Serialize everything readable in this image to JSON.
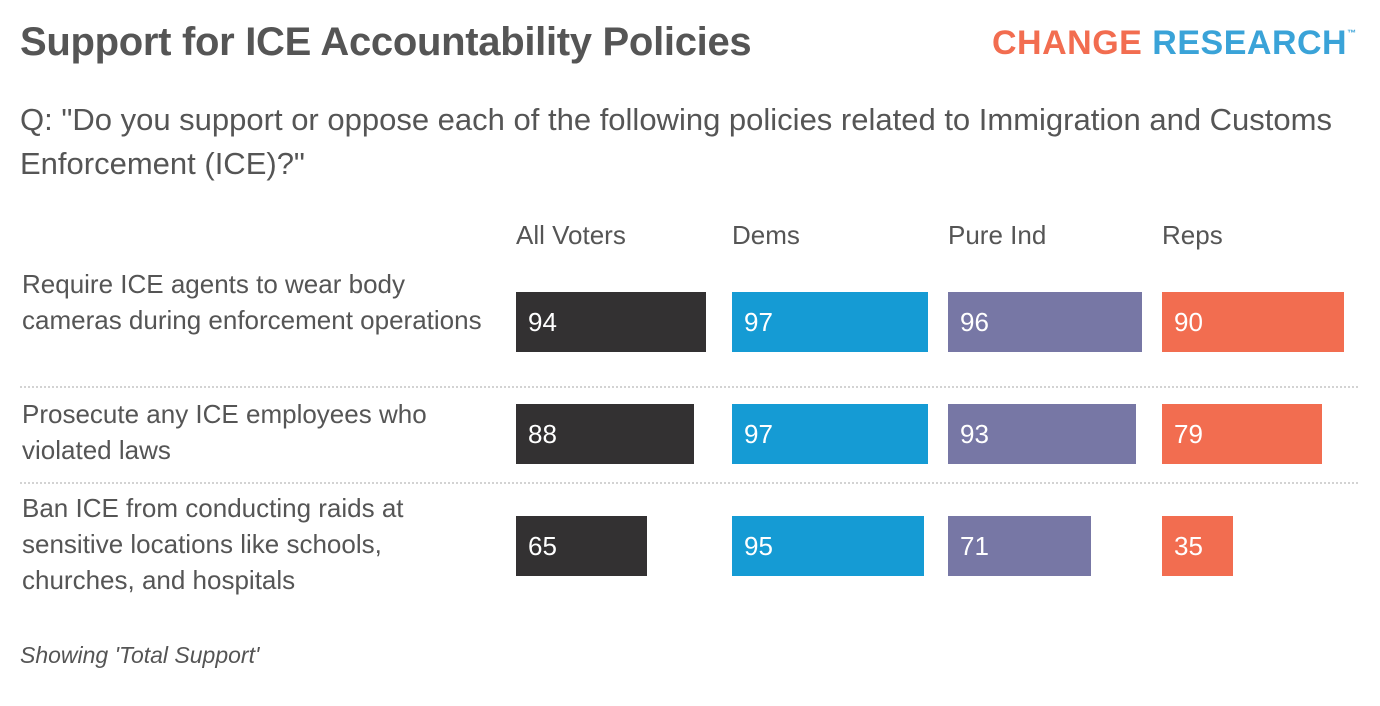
{
  "header": {
    "title": "Support for ICE Accountability Policies",
    "logo_part1": "CHANGE",
    "logo_part2": "RESEARCH",
    "logo_tm": "™"
  },
  "question": "Q: \"Do you support or oppose each of the following policies related to Immigration and Customs Enforcement (ICE)?\"",
  "footnote": "Showing 'Total Support'",
  "colors": {
    "All Voters": "#333132",
    "Dems": "#159bd4",
    "Pure Ind": "#7777a5",
    "Reps": "#f26d50"
  },
  "chart_data": {
    "type": "bar",
    "orientation": "horizontal",
    "title": "Support for ICE Accountability Policies",
    "subtitle": "Q: \"Do you support or oppose each of the following policies related to Immigration and Customs Enforcement (ICE)?\"",
    "note": "Showing 'Total Support'",
    "unit": "percent",
    "xlim": [
      0,
      100
    ],
    "grid": false,
    "categories": [
      "Require ICE agents to wear body cameras during enforcement operations",
      "Prosecute any ICE employees who violated laws",
      "Ban ICE from conducting raids at sensitive locations like schools, churches, and hospitals"
    ],
    "series": [
      {
        "name": "All Voters",
        "values": [
          94,
          88,
          65
        ]
      },
      {
        "name": "Dems",
        "values": [
          97,
          97,
          95
        ]
      },
      {
        "name": "Pure Ind",
        "values": [
          96,
          93,
          71
        ]
      },
      {
        "name": "Reps",
        "values": [
          90,
          79,
          35
        ]
      }
    ]
  }
}
